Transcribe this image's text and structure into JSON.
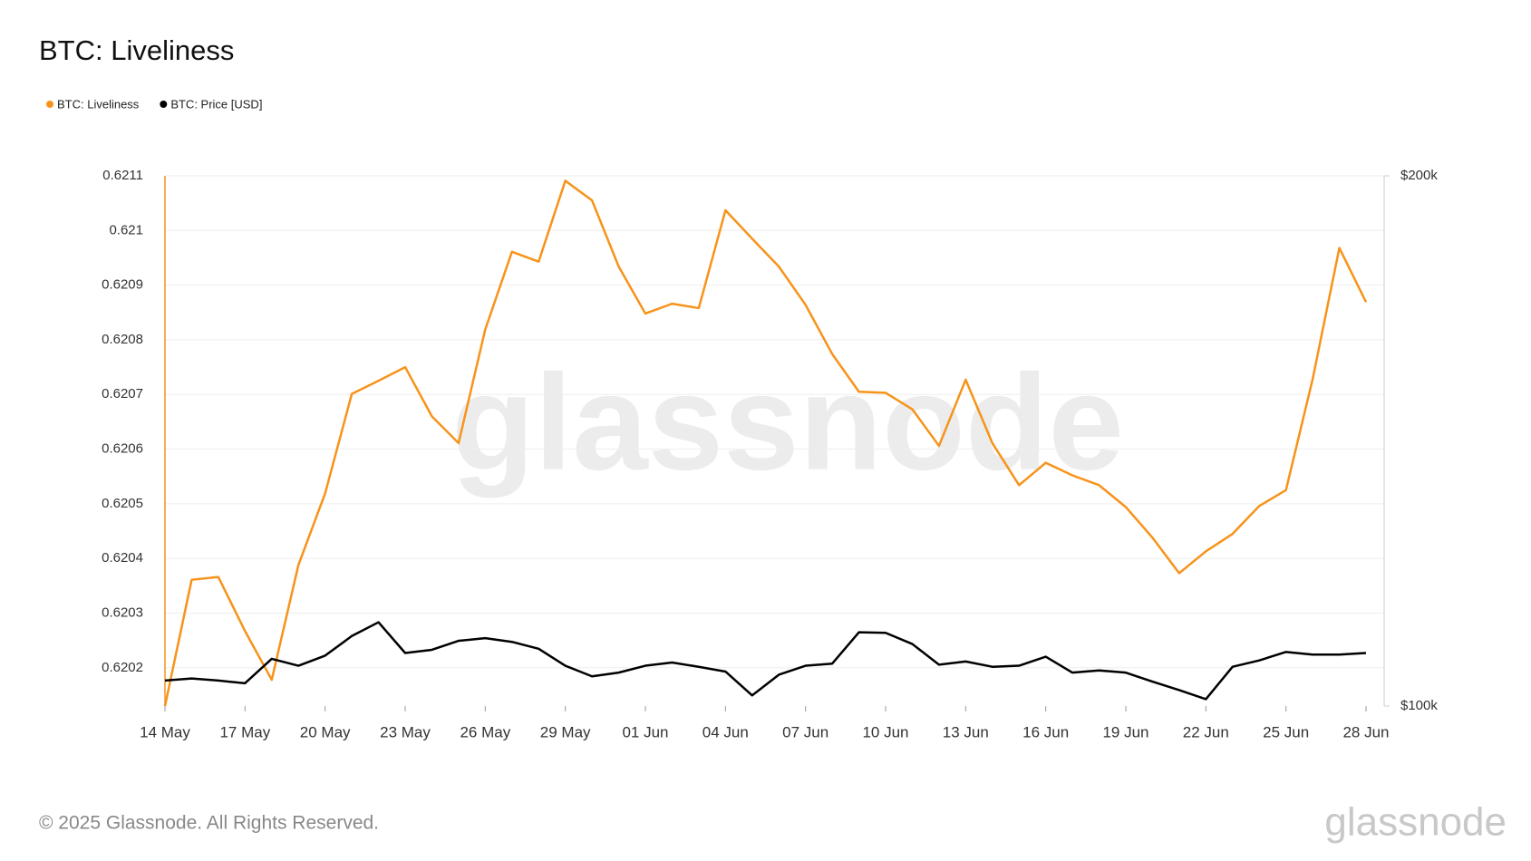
{
  "chart_data": {
    "type": "line",
    "title": "BTC: Liveliness",
    "watermark": "glassnode",
    "footer": "© 2025 Glassnode. All Rights Reserved.",
    "logo": "glassnode",
    "categories": [
      "14 May",
      null,
      null,
      "17 May",
      null,
      null,
      "20 May",
      null,
      null,
      "23 May",
      null,
      null,
      "26 May",
      null,
      null,
      "29 May",
      null,
      null,
      "01 Jun",
      null,
      null,
      "04 Jun",
      null,
      null,
      "07 Jun",
      null,
      null,
      "10 Jun",
      null,
      null,
      "13 Jun",
      null,
      null,
      "16 Jun",
      null,
      null,
      "19 Jun",
      null,
      null,
      "22 Jun",
      null,
      null,
      "25 Jun",
      null,
      null,
      "28 Jun"
    ],
    "series": [
      {
        "name": "BTC: Liveliness",
        "color": "#f7931a",
        "values": [
          0.62013,
          0.620361,
          0.620366,
          0.620267,
          0.620178,
          0.620388,
          0.620519,
          0.620701,
          0.620725,
          0.62075,
          0.62066,
          0.620611,
          0.620819,
          0.620961,
          0.620943,
          0.621091,
          0.621055,
          0.620934,
          0.620848,
          0.620866,
          0.620858,
          0.621037,
          0.620985,
          0.620934,
          0.620864,
          0.620774,
          0.620705,
          0.620703,
          0.620673,
          0.620606,
          0.620727,
          0.620611,
          0.620534,
          0.620575,
          0.620552,
          0.620534,
          0.620494,
          0.620438,
          0.620373,
          0.620413,
          0.620445,
          0.620496,
          0.620525,
          0.620728,
          0.620968,
          0.620869
        ]
      },
      {
        "name": "BTC: Price [USD]",
        "color": "#000000",
        "axis": "y2",
        "values": [
          104800,
          105200,
          104800,
          104300,
          108900,
          107600,
          109500,
          113200,
          115800,
          110000,
          110600,
          112300,
          112800,
          112100,
          110800,
          107600,
          105600,
          106300,
          107600,
          108200,
          107400,
          106500,
          102000,
          105900,
          107600,
          108000,
          113900,
          113800,
          111700,
          107800,
          108400,
          107400,
          107600,
          109300,
          106300,
          106700,
          106300,
          104600,
          103000,
          101300,
          107400,
          108600,
          110200,
          109700,
          109700,
          110000
        ]
      }
    ],
    "ylim": [
      0.62013,
      0.6211
    ],
    "yticks": [
      0.6202,
      0.6203,
      0.6204,
      0.6205,
      0.6206,
      0.6207,
      0.6208,
      0.6209,
      0.621,
      0.6211
    ],
    "y2lim": [
      100000,
      200000
    ],
    "y2ticks": [
      {
        "value": 100000,
        "label": "$100k"
      },
      {
        "value": 200000,
        "label": "$200k"
      }
    ],
    "grid": true
  }
}
